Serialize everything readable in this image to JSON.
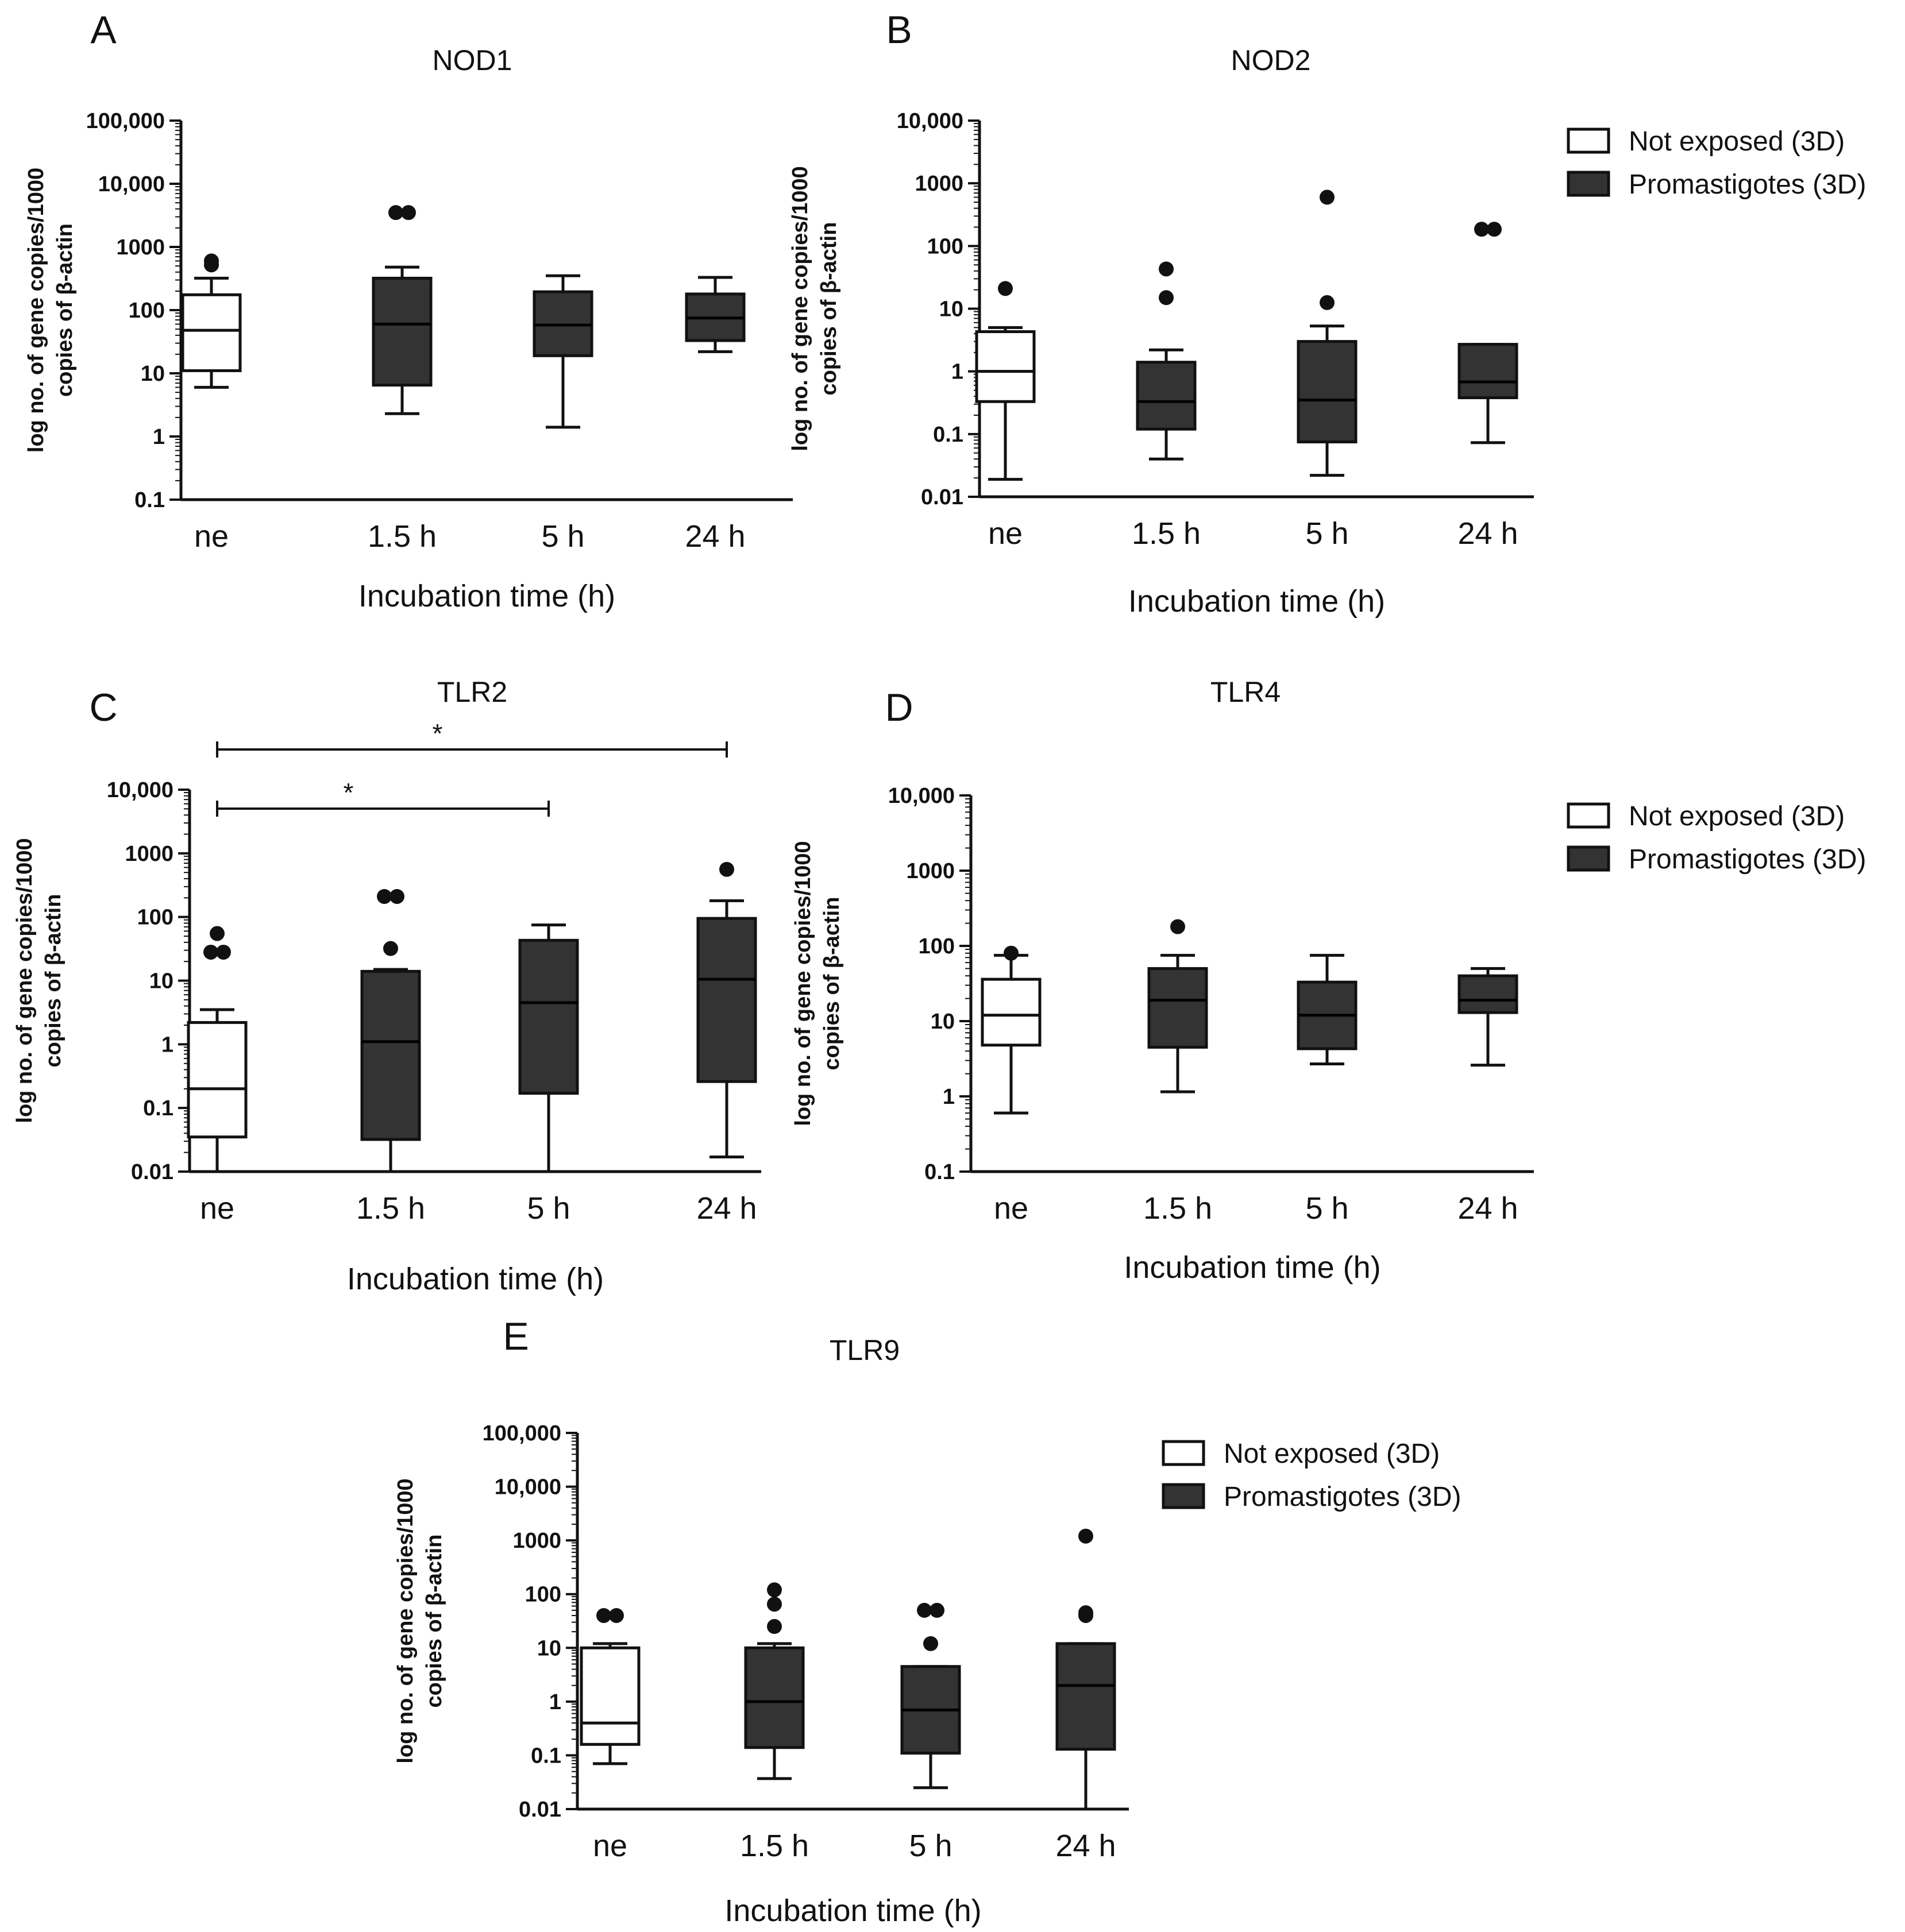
{
  "legend": {
    "items": [
      {
        "label": "Not exposed (3D)",
        "fill": "#ffffff"
      },
      {
        "label": "Promastigotes (3D)",
        "fill": "#333333"
      }
    ]
  },
  "chart_data": [
    {
      "type": "box",
      "panel": "A",
      "title": "NOD1",
      "xlabel": "Incubation time (h)",
      "ylabel_line1": "log no. of gene copies/1000",
      "ylabel_line2": "copies of β-actin",
      "yscale": "log",
      "ylim": [
        0.1,
        100000
      ],
      "yticks": [
        {
          "value": 0.1,
          "label": "0.1"
        },
        {
          "value": 1,
          "label": "1"
        },
        {
          "value": 10,
          "label": "10"
        },
        {
          "value": 100,
          "label": "100"
        },
        {
          "value": 1000,
          "label": "1000"
        },
        {
          "value": 10000,
          "label": "10,000"
        },
        {
          "value": 100000,
          "label": "100,000"
        }
      ],
      "categories": [
        "ne",
        "1.5 h",
        "5 h",
        "24 h"
      ],
      "boxes": [
        {
          "group": "Not exposed (3D)",
          "whisker_low": 6,
          "q1": 11,
          "median": 48,
          "q3": 175,
          "whisker_high": 320,
          "outliers": [
            520,
            600
          ]
        },
        {
          "group": "Promastigotes (3D)",
          "whisker_low": 2.3,
          "q1": 6.5,
          "median": 60,
          "q3": 320,
          "whisker_high": 480,
          "outliers": [
            3500,
            3500
          ]
        },
        {
          "group": "Promastigotes (3D)",
          "whisker_low": 1.4,
          "q1": 19,
          "median": 58,
          "q3": 195,
          "whisker_high": 350,
          "outliers": []
        },
        {
          "group": "Promastigotes (3D)",
          "whisker_low": 22,
          "q1": 33,
          "median": 75,
          "q3": 180,
          "whisker_high": 330,
          "outliers": []
        }
      ],
      "brackets": []
    },
    {
      "type": "box",
      "panel": "B",
      "title": "NOD2",
      "xlabel": "Incubation time (h)",
      "ylabel_line1": "log no. of gene copies/1000",
      "ylabel_line2": "copies of β-actin",
      "yscale": "log",
      "ylim": [
        0.01,
        10000
      ],
      "yticks": [
        {
          "value": 0.01,
          "label": "0.01"
        },
        {
          "value": 0.1,
          "label": "0.1"
        },
        {
          "value": 1,
          "label": "1"
        },
        {
          "value": 10,
          "label": "10"
        },
        {
          "value": 100,
          "label": "100"
        },
        {
          "value": 1000,
          "label": "1000"
        },
        {
          "value": 10000,
          "label": "10,000"
        }
      ],
      "categories": [
        "ne",
        "1.5 h",
        "5 h",
        "24 h"
      ],
      "boxes": [
        {
          "group": "Not exposed (3D)",
          "whisker_low": 0.019,
          "q1": 0.33,
          "median": 1.0,
          "q3": 4.3,
          "whisker_high": 5.0,
          "outliers": [
            21
          ]
        },
        {
          "group": "Promastigotes (3D)",
          "whisker_low": 0.04,
          "q1": 0.12,
          "median": 0.33,
          "q3": 1.4,
          "whisker_high": 2.2,
          "outliers": [
            15,
            43
          ]
        },
        {
          "group": "Promastigotes (3D)",
          "whisker_low": 0.022,
          "q1": 0.075,
          "median": 0.35,
          "q3": 3.0,
          "whisker_high": 5.3,
          "outliers": [
            12.5,
            600
          ]
        },
        {
          "group": "Promastigotes (3D)",
          "whisker_low": 0.073,
          "q1": 0.38,
          "median": 0.68,
          "q3": 2.7,
          "whisker_high": 2.7,
          "outliers": [
            185,
            185
          ]
        }
      ],
      "brackets": []
    },
    {
      "type": "box",
      "panel": "C",
      "title": "TLR2",
      "xlabel": "Incubation time (h)",
      "ylabel_line1": "log no. of gene copies/1000",
      "ylabel_line2": "copies of β-actin",
      "yscale": "log",
      "ylim": [
        0.01,
        10000
      ],
      "yticks": [
        {
          "value": 0.01,
          "label": "0.01"
        },
        {
          "value": 0.1,
          "label": "0.1"
        },
        {
          "value": 1,
          "label": "1"
        },
        {
          "value": 10,
          "label": "10"
        },
        {
          "value": 100,
          "label": "100"
        },
        {
          "value": 1000,
          "label": "1000"
        },
        {
          "value": 10000,
          "label": "10,000"
        }
      ],
      "categories": [
        "ne",
        "1.5 h",
        "5 h",
        "24 h"
      ],
      "boxes": [
        {
          "group": "Not exposed (3D)",
          "whisker_low": 0.01,
          "q1": 0.035,
          "median": 0.2,
          "q3": 2.2,
          "whisker_high": 3.5,
          "outliers": [
            55,
            28,
            28
          ]
        },
        {
          "group": "Promastigotes (3D)",
          "whisker_low": 0.01,
          "q1": 0.032,
          "median": 1.1,
          "q3": 14,
          "whisker_high": 15,
          "outliers": [
            210,
            210,
            32
          ]
        },
        {
          "group": "Promastigotes (3D)",
          "whisker_low": 0.01,
          "q1": 0.17,
          "median": 4.5,
          "q3": 43,
          "whisker_high": 75,
          "outliers": []
        },
        {
          "group": "Promastigotes (3D)",
          "whisker_low": 0.017,
          "q1": 0.26,
          "median": 10.5,
          "q3": 95,
          "whisker_high": 180,
          "outliers": [
            560
          ]
        }
      ],
      "brackets": [
        {
          "from": "ne",
          "to": "24 h",
          "label": "*",
          "level": 2
        },
        {
          "from": "ne",
          "to": "5 h",
          "label": "*",
          "level": 1
        }
      ]
    },
    {
      "type": "box",
      "panel": "D",
      "title": "TLR4",
      "xlabel": "Incubation time (h)",
      "ylabel_line1": "log no. of gene copies/1000",
      "ylabel_line2": "copies of β-actin",
      "yscale": "log",
      "ylim": [
        0.1,
        10000
      ],
      "yticks": [
        {
          "value": 0.1,
          "label": "0.1"
        },
        {
          "value": 1,
          "label": "1"
        },
        {
          "value": 10,
          "label": "10"
        },
        {
          "value": 100,
          "label": "100"
        },
        {
          "value": 1000,
          "label": "1000"
        },
        {
          "value": 10000,
          "label": "10,000"
        }
      ],
      "categories": [
        "ne",
        "1.5 h",
        "5 h",
        "24 h"
      ],
      "boxes": [
        {
          "group": "Not exposed (3D)",
          "whisker_low": 0.6,
          "q1": 4.8,
          "median": 12,
          "q3": 36,
          "whisker_high": 75,
          "outliers": [
            80
          ]
        },
        {
          "group": "Promastigotes (3D)",
          "whisker_low": 1.15,
          "q1": 4.5,
          "median": 19,
          "q3": 50,
          "whisker_high": 75,
          "outliers": [
            180
          ]
        },
        {
          "group": "Promastigotes (3D)",
          "whisker_low": 2.7,
          "q1": 4.3,
          "median": 12,
          "q3": 33,
          "whisker_high": 75,
          "outliers": []
        },
        {
          "group": "Promastigotes (3D)",
          "whisker_low": 2.6,
          "q1": 13,
          "median": 19,
          "q3": 40,
          "whisker_high": 50,
          "outliers": []
        }
      ],
      "brackets": []
    },
    {
      "type": "box",
      "panel": "E",
      "title": "TLR9",
      "xlabel": "Incubation time (h)",
      "ylabel_line1": "log no. of gene copies/1000",
      "ylabel_line2": "copies of β-actin",
      "yscale": "log",
      "ylim": [
        0.01,
        100000
      ],
      "yticks": [
        {
          "value": 0.01,
          "label": "0.01"
        },
        {
          "value": 0.1,
          "label": "0.1"
        },
        {
          "value": 1,
          "label": "1"
        },
        {
          "value": 10,
          "label": "10"
        },
        {
          "value": 100,
          "label": "100"
        },
        {
          "value": 1000,
          "label": "1000"
        },
        {
          "value": 10000,
          "label": "10,000"
        },
        {
          "value": 100000,
          "label": "100,000"
        }
      ],
      "categories": [
        "ne",
        "1.5 h",
        "5 h",
        "24 h"
      ],
      "boxes": [
        {
          "group": "Not exposed (3D)",
          "whisker_low": 0.07,
          "q1": 0.16,
          "median": 0.4,
          "q3": 10,
          "whisker_high": 12,
          "outliers": [
            40,
            40
          ]
        },
        {
          "group": "Promastigotes (3D)",
          "whisker_low": 0.037,
          "q1": 0.14,
          "median": 1.0,
          "q3": 10,
          "whisker_high": 12,
          "outliers": [
            120,
            65,
            25
          ]
        },
        {
          "group": "Promastigotes (3D)",
          "whisker_low": 0.025,
          "q1": 0.11,
          "median": 0.7,
          "q3": 4.5,
          "whisker_high": 4.5,
          "outliers": [
            50,
            50,
            12
          ]
        },
        {
          "group": "Promastigotes (3D)",
          "whisker_low": 0.01,
          "q1": 0.13,
          "median": 2.0,
          "q3": 12,
          "whisker_high": 12,
          "outliers": [
            1200,
            40,
            45
          ]
        }
      ],
      "brackets": []
    }
  ]
}
